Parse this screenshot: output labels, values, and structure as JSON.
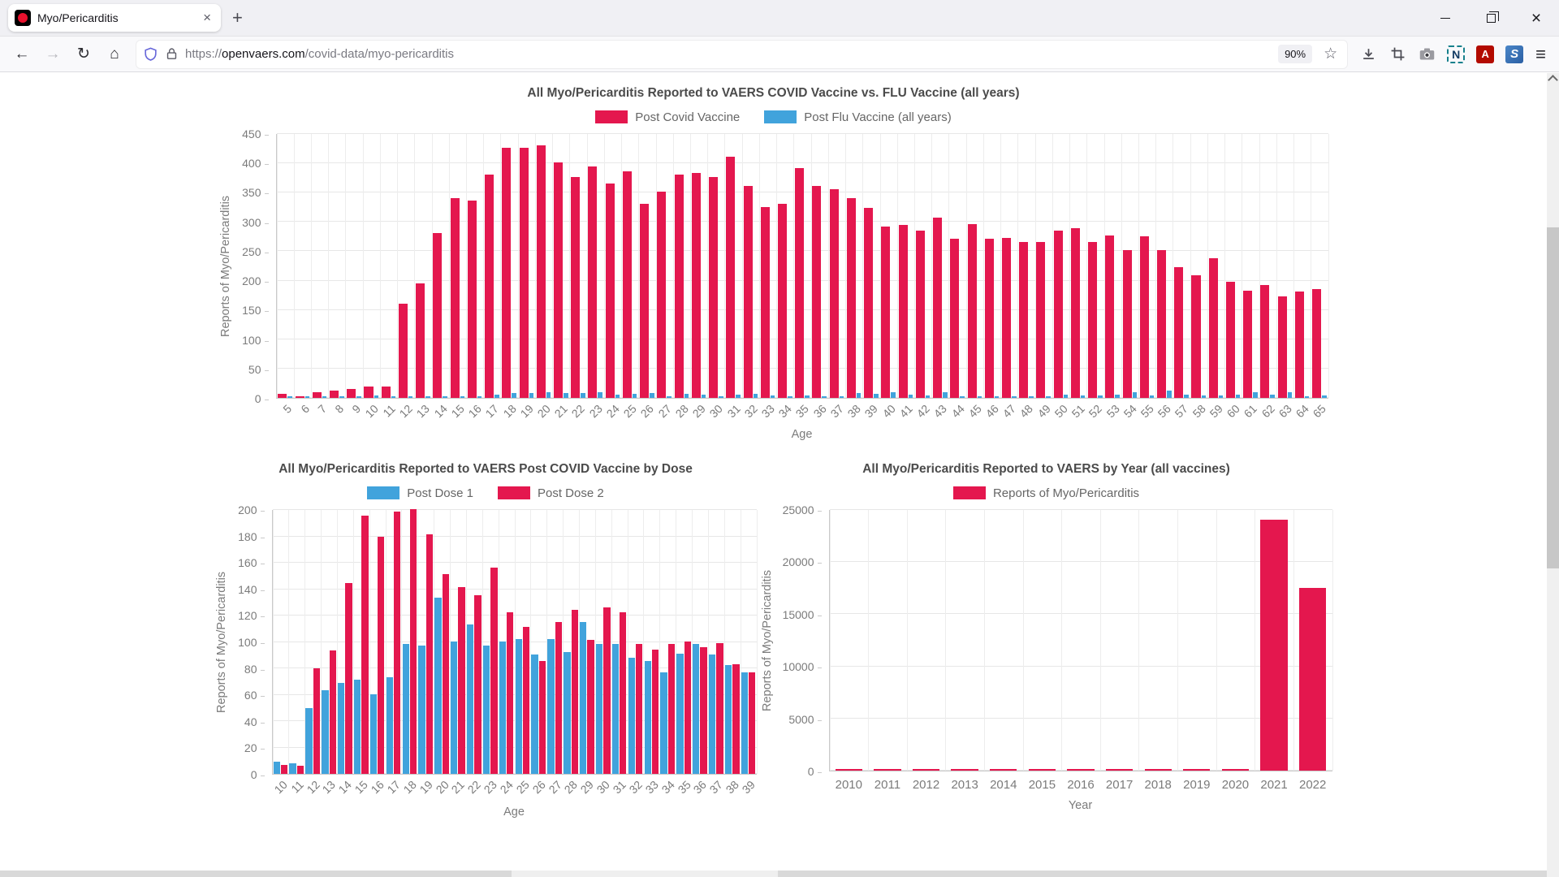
{
  "browser": {
    "tab": {
      "title": "Myo/Pericarditis"
    },
    "toolbar": {
      "url_scheme": "https://",
      "url_host": "openvaers.com",
      "url_path": "/covid-data/myo-pericarditis",
      "zoom_indicator": "90%"
    }
  },
  "icons": {
    "back": "←",
    "forward": "→",
    "reload": "↻",
    "home": "⌂",
    "star": "☆",
    "menu": "≡",
    "tab_close": "×",
    "window_close": "×",
    "new_tab": "+",
    "extension_n": "N",
    "extension_pdf": "A",
    "extension_s": "S"
  },
  "chart_data": [
    {
      "type": "bar",
      "title": "All Myo/Pericarditis Reported to VAERS COVID Vaccine vs. FLU Vaccine (all years)",
      "xlabel": "Age",
      "ylabel": "Reports of Myo/Pericarditis",
      "ylim": [
        0,
        450
      ],
      "ytick_step": 50,
      "rotate_x": true,
      "grid": true,
      "legend_position": "top",
      "categories": [
        5,
        6,
        7,
        8,
        9,
        10,
        11,
        12,
        13,
        14,
        15,
        16,
        17,
        18,
        19,
        20,
        21,
        22,
        23,
        24,
        25,
        26,
        27,
        28,
        29,
        30,
        31,
        32,
        33,
        34,
        35,
        36,
        37,
        38,
        39,
        40,
        41,
        42,
        43,
        44,
        45,
        46,
        47,
        48,
        49,
        50,
        51,
        52,
        53,
        54,
        55,
        56,
        57,
        58,
        59,
        60,
        61,
        62,
        63,
        64,
        65
      ],
      "series": [
        {
          "name": "Post Covid Vaccine",
          "color": "#e4174e",
          "values": [
            7,
            3,
            10,
            12,
            15,
            20,
            20,
            160,
            195,
            280,
            340,
            335,
            380,
            425,
            425,
            430,
            400,
            375,
            393,
            365,
            385,
            330,
            350,
            380,
            383,
            375,
            410,
            360,
            325,
            330,
            390,
            360,
            355,
            340,
            323,
            291,
            294,
            285,
            307,
            270,
            296,
            270,
            272,
            265,
            265,
            285,
            288,
            265,
            276,
            251,
            275,
            251,
            222,
            209,
            237,
            198,
            182,
            192,
            173,
            181,
            185
          ]
        },
        {
          "name": "Post Flu Vaccine (all years)",
          "color": "#41a3dc",
          "values": [
            1,
            1,
            2,
            2,
            2,
            4,
            3,
            3,
            2,
            3,
            2,
            3,
            5,
            8,
            8,
            10,
            8,
            8,
            10,
            6,
            7,
            8,
            3,
            7,
            5,
            2,
            5,
            7,
            4,
            3,
            4,
            3,
            3,
            8,
            7,
            10,
            5,
            4,
            10,
            3,
            3,
            2,
            3,
            3,
            2,
            5,
            4,
            4,
            5,
            10,
            4,
            12,
            6,
            4,
            4,
            5,
            10,
            5,
            10,
            3,
            4
          ]
        }
      ]
    },
    {
      "type": "bar",
      "title": "All Myo/Pericarditis Reported to VAERS Post COVID Vaccine by Dose",
      "xlabel": "Age",
      "ylabel": "Reports of Myo/Pericarditis",
      "ylim": [
        0,
        200
      ],
      "ytick_step": 20,
      "rotate_x": true,
      "grid": true,
      "legend_position": "top",
      "categories": [
        10,
        11,
        12,
        13,
        14,
        15,
        16,
        17,
        18,
        19,
        20,
        21,
        22,
        23,
        24,
        25,
        26,
        27,
        28,
        29,
        30,
        31,
        32,
        33,
        34,
        35,
        36,
        37,
        38,
        39
      ],
      "series": [
        {
          "name": "Post Dose 1",
          "color": "#41a3dc",
          "values": [
            9,
            8,
            50,
            63,
            69,
            71,
            60,
            73,
            98,
            97,
            133,
            100,
            113,
            97,
            100,
            102,
            90,
            102,
            92,
            115,
            98,
            98,
            88,
            85,
            77,
            91,
            98,
            90,
            82,
            77
          ]
        },
        {
          "name": "Post Dose 2",
          "color": "#e4174e",
          "values": [
            7,
            6,
            80,
            93,
            144,
            195,
            179,
            198,
            200,
            181,
            151,
            141,
            135,
            156,
            122,
            111,
            85,
            115,
            124,
            101,
            126,
            122,
            98,
            94,
            98,
            100,
            96,
            99,
            83,
            77
          ]
        }
      ]
    },
    {
      "type": "bar",
      "title": "All Myo/Pericarditis Reported to VAERS by Year (all vaccines)",
      "xlabel": "Year",
      "ylabel": "Reports of Myo/Pericarditis",
      "ylim": [
        0,
        25000
      ],
      "ytick_step": 5000,
      "rotate_x": false,
      "grid": true,
      "legend_position": "top",
      "categories": [
        2010,
        2011,
        2012,
        2013,
        2014,
        2015,
        2016,
        2017,
        2018,
        2019,
        2020,
        2021,
        2022
      ],
      "series": [
        {
          "name": "Reports of Myo/Pericarditis",
          "color": "#e4174e",
          "values": [
            80,
            100,
            150,
            130,
            100,
            50,
            70,
            100,
            170,
            110,
            100,
            24000,
            17500
          ]
        }
      ]
    }
  ]
}
